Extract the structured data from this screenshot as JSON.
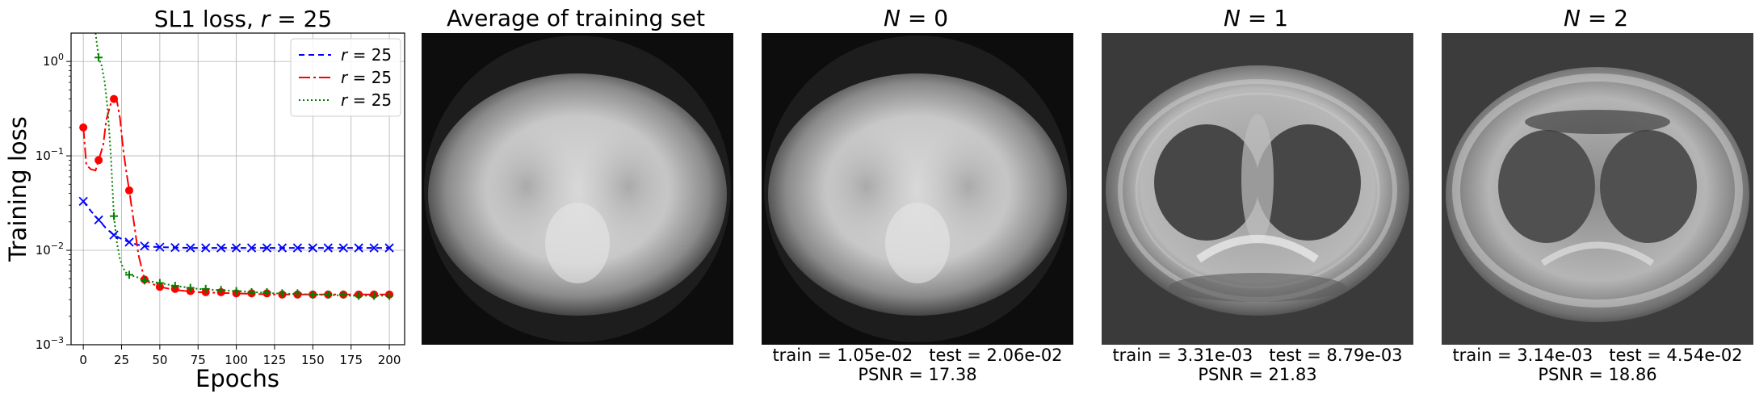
{
  "chart_data": {
    "type": "line",
    "title_prefix": "SL1 loss, ",
    "title_var": "r",
    "title_rest": " = 25",
    "xlabel": "Epochs",
    "ylabel": "Training loss",
    "xlim": [
      -8,
      210
    ],
    "xticks": [
      0,
      25,
      50,
      75,
      100,
      125,
      150,
      175,
      200
    ],
    "ylim_log10": [
      -3,
      0.3
    ],
    "yscale": "log",
    "yticks": [
      {
        "value": 0.001,
        "base": "10",
        "exp": "−3"
      },
      {
        "value": 0.01,
        "base": "10",
        "exp": "−2"
      },
      {
        "value": 0.1,
        "base": "10",
        "exp": "−1"
      },
      {
        "value": 1,
        "base": "10",
        "exp": "0"
      }
    ],
    "grid": true,
    "legend_position": "top-right",
    "series": [
      {
        "name_var": "r",
        "name_rest": " = 25",
        "color": "#0000ff",
        "dash": "7,5",
        "marker": "x",
        "x": [
          0,
          5,
          10,
          15,
          20,
          25,
          30,
          35,
          40,
          45,
          50,
          60,
          70,
          80,
          100,
          125,
          150,
          175,
          200
        ],
        "y": [
          0.033,
          0.026,
          0.021,
          0.017,
          0.0145,
          0.0132,
          0.0122,
          0.0115,
          0.0111,
          0.0109,
          0.0108,
          0.0107,
          0.0106,
          0.0106,
          0.0106,
          0.0106,
          0.0106,
          0.0106,
          0.0106
        ],
        "marker_x": [
          0,
          10,
          20,
          30,
          40,
          50,
          60,
          70,
          80,
          90,
          100,
          110,
          120,
          130,
          140,
          150,
          160,
          170,
          180,
          190,
          200
        ],
        "marker_y": [
          0.033,
          0.021,
          0.0145,
          0.0122,
          0.0111,
          0.0108,
          0.0107,
          0.0106,
          0.0106,
          0.0106,
          0.0106,
          0.0106,
          0.0106,
          0.0106,
          0.0106,
          0.0106,
          0.0106,
          0.0106,
          0.0106,
          0.0106,
          0.0106
        ]
      },
      {
        "name_var": "r",
        "name_rest": " = 25",
        "color": "#ff0000",
        "dash": "14,4,3,4",
        "marker": "o",
        "x": [
          0,
          2,
          5,
          8,
          10,
          13,
          15,
          18,
          20,
          22,
          24,
          26,
          28,
          30,
          33,
          36,
          40,
          45,
          50,
          60,
          75,
          100,
          125,
          150,
          175,
          200
        ],
        "y": [
          0.2,
          0.08,
          0.072,
          0.07,
          0.09,
          0.13,
          0.24,
          0.36,
          0.4,
          0.38,
          0.25,
          0.12,
          0.07,
          0.043,
          0.02,
          0.009,
          0.0049,
          0.0044,
          0.0041,
          0.0038,
          0.0036,
          0.0035,
          0.0034,
          0.0034,
          0.0034,
          0.0034
        ],
        "marker_x": [
          0,
          10,
          20,
          30,
          40,
          50,
          60,
          70,
          80,
          90,
          100,
          110,
          120,
          130,
          140,
          150,
          160,
          170,
          180,
          190,
          200
        ],
        "marker_y": [
          0.2,
          0.09,
          0.4,
          0.043,
          0.0049,
          0.0041,
          0.0039,
          0.0037,
          0.0036,
          0.0036,
          0.0035,
          0.0035,
          0.0035,
          0.0034,
          0.0034,
          0.0034,
          0.0034,
          0.0034,
          0.0034,
          0.0034,
          0.0034
        ]
      },
      {
        "name_var": "r",
        "name_rest": " = 25",
        "color": "#008000",
        "dash": "2,3",
        "marker": "+",
        "x": [
          8,
          10,
          12,
          14,
          16,
          18,
          20,
          22,
          24,
          26,
          28,
          30,
          35,
          40,
          50,
          60,
          75,
          100,
          125,
          150,
          175,
          200
        ],
        "y": [
          2.0,
          1.1,
          0.9,
          0.6,
          0.3,
          0.1,
          0.023,
          0.012,
          0.008,
          0.0065,
          0.0058,
          0.0055,
          0.0052,
          0.0048,
          0.0045,
          0.0042,
          0.0039,
          0.0037,
          0.0035,
          0.0034,
          0.0033,
          0.0033
        ],
        "marker_x": [
          10,
          20,
          30,
          40,
          50,
          60,
          70,
          80,
          90,
          100,
          110,
          120,
          130,
          140,
          150,
          160,
          170,
          180,
          190,
          200
        ],
        "marker_y": [
          1.1,
          0.023,
          0.0055,
          0.0048,
          0.0045,
          0.0042,
          0.004,
          0.0039,
          0.0038,
          0.0037,
          0.0036,
          0.0036,
          0.0035,
          0.0035,
          0.0034,
          0.0034,
          0.0034,
          0.0033,
          0.0033,
          0.0033
        ]
      }
    ]
  },
  "panels": [
    {
      "title": "Average of training set",
      "caption_line1": "",
      "caption_line2": ""
    },
    {
      "title_var": "N",
      "title_rest": " = 0",
      "caption_line1": "train = 1.05e-02   test = 2.06e-02",
      "caption_line2": "PSNR = 17.38"
    },
    {
      "title_var": "N",
      "title_rest": " = 1",
      "caption_line1": "train = 3.31e-03   test = 8.79e-03",
      "caption_line2": "PSNR = 21.83"
    },
    {
      "title_var": "N",
      "title_rest": " = 2",
      "caption_line1": "train = 3.14e-03   test = 4.54e-02",
      "caption_line2": "PSNR = 18.86"
    }
  ]
}
